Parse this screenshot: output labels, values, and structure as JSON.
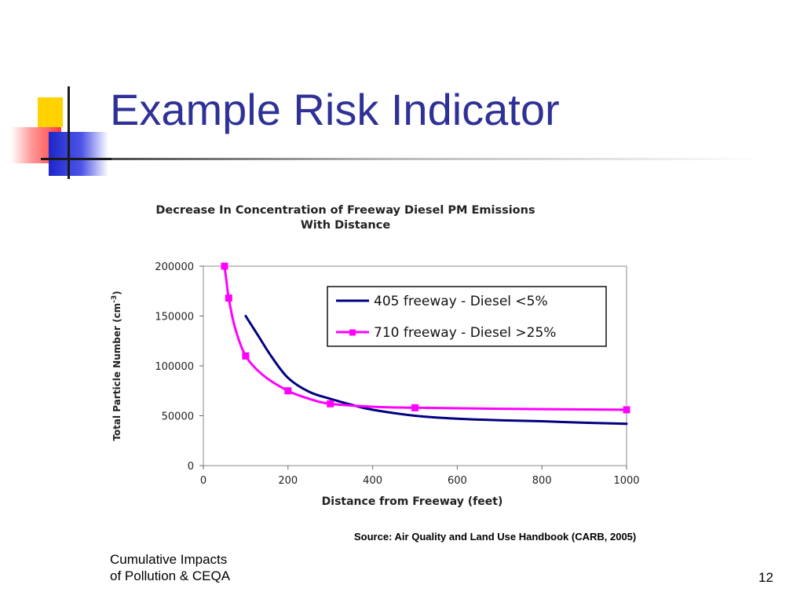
{
  "slide": {
    "title": "Example Risk Indicator",
    "source": "Source: Air Quality and Land Use Handbook (CARB, 2005)",
    "footer_line1": "Cumulative Impacts",
    "footer_line2": "of Pollution & CEQA",
    "page_number": "12"
  },
  "colors": {
    "title": "#2f3196",
    "accent_yellow": "#ffd200",
    "accent_red": "#ff3b3b",
    "accent_blue": "#1d27c9",
    "series_405": "#000080",
    "series_710": "#ff00ff"
  },
  "chart_data": {
    "type": "line",
    "title_line1": "Decrease In Concentration of Freeway Diesel PM Emissions",
    "title_line2": "With Distance",
    "xlabel": "Distance from Freeway (feet)",
    "ylabel_main": "Total Particle Number (cm",
    "ylabel_sup": "-3",
    "ylabel_end": ")",
    "xlim": [
      0,
      1000
    ],
    "ylim": [
      0,
      200000
    ],
    "xticks": [
      0,
      200,
      400,
      600,
      800,
      1000
    ],
    "yticks": [
      0,
      50000,
      100000,
      150000,
      200000
    ],
    "legend_position": "top-right",
    "grid": false,
    "series": [
      {
        "name": "405 freeway - Diesel <5%",
        "color": "#000080",
        "marker": "none",
        "points": [
          [
            100,
            150000
          ],
          [
            130,
            130000
          ],
          [
            160,
            110000
          ],
          [
            200,
            88000
          ],
          [
            250,
            74000
          ],
          [
            300,
            67000
          ],
          [
            350,
            61000
          ],
          [
            400,
            56000
          ],
          [
            500,
            50000
          ],
          [
            600,
            47000
          ],
          [
            700,
            45500
          ],
          [
            800,
            44500
          ],
          [
            900,
            43000
          ],
          [
            1000,
            42000
          ]
        ]
      },
      {
        "name": "710 freeway - Diesel >25%",
        "color": "#ff00ff",
        "marker": "square",
        "markers": [
          [
            50,
            200000
          ],
          [
            60,
            168000
          ],
          [
            100,
            110000
          ],
          [
            200,
            75000
          ],
          [
            300,
            62000
          ],
          [
            500,
            58000
          ],
          [
            1000,
            56000
          ]
        ],
        "points": [
          [
            50,
            200000
          ],
          [
            55,
            184000
          ],
          [
            60,
            168000
          ],
          [
            75,
            138000
          ],
          [
            100,
            110000
          ],
          [
            140,
            91000
          ],
          [
            200,
            75000
          ],
          [
            250,
            67000
          ],
          [
            300,
            62000
          ],
          [
            400,
            59000
          ],
          [
            500,
            58000
          ],
          [
            700,
            57000
          ],
          [
            1000,
            56000
          ]
        ]
      }
    ]
  }
}
